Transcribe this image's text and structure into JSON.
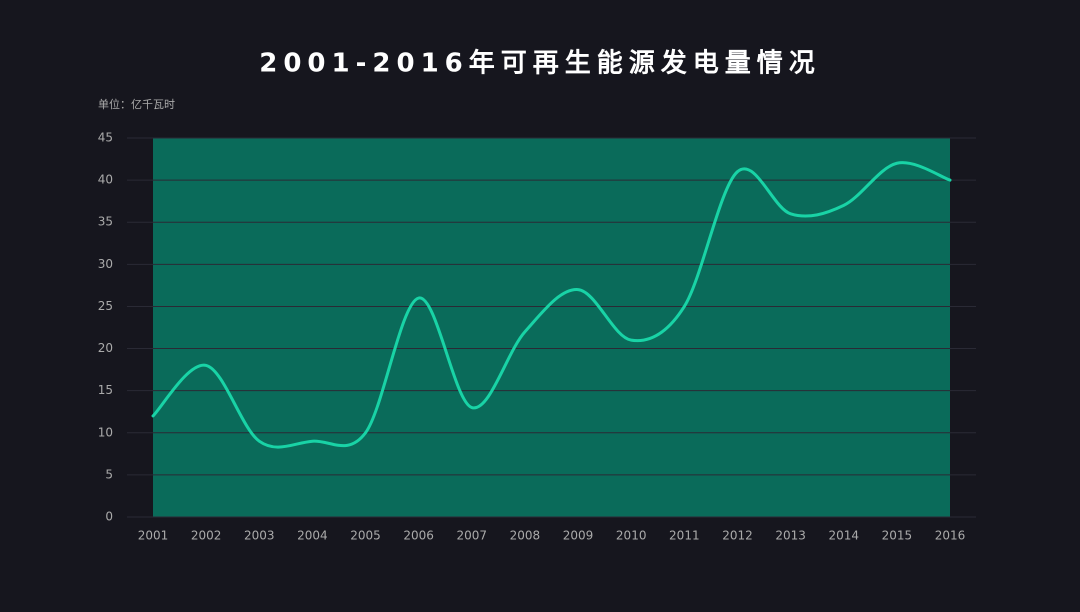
{
  "chart_data": {
    "type": "line",
    "title": "2001-2016年可再生能源发电量情况",
    "unit_label": "单位：亿千瓦时",
    "categories": [
      "2001",
      "2002",
      "2003",
      "2004",
      "2005",
      "2006",
      "2007",
      "2008",
      "2009",
      "2010",
      "2011",
      "2012",
      "2013",
      "2014",
      "2015",
      "2016"
    ],
    "series": [
      {
        "name": "发电量",
        "color": "#19d3a6",
        "values": [
          12,
          18,
          9,
          9,
          10,
          26,
          13,
          22,
          27,
          21,
          25,
          41,
          36,
          37,
          42,
          40
        ]
      }
    ],
    "ylim": [
      0,
      45
    ],
    "yticks": [
      0,
      5,
      10,
      15,
      20,
      25,
      30,
      35,
      40,
      45
    ],
    "grid": true,
    "smooth": true,
    "plot_fill": "#0a6b5a"
  }
}
